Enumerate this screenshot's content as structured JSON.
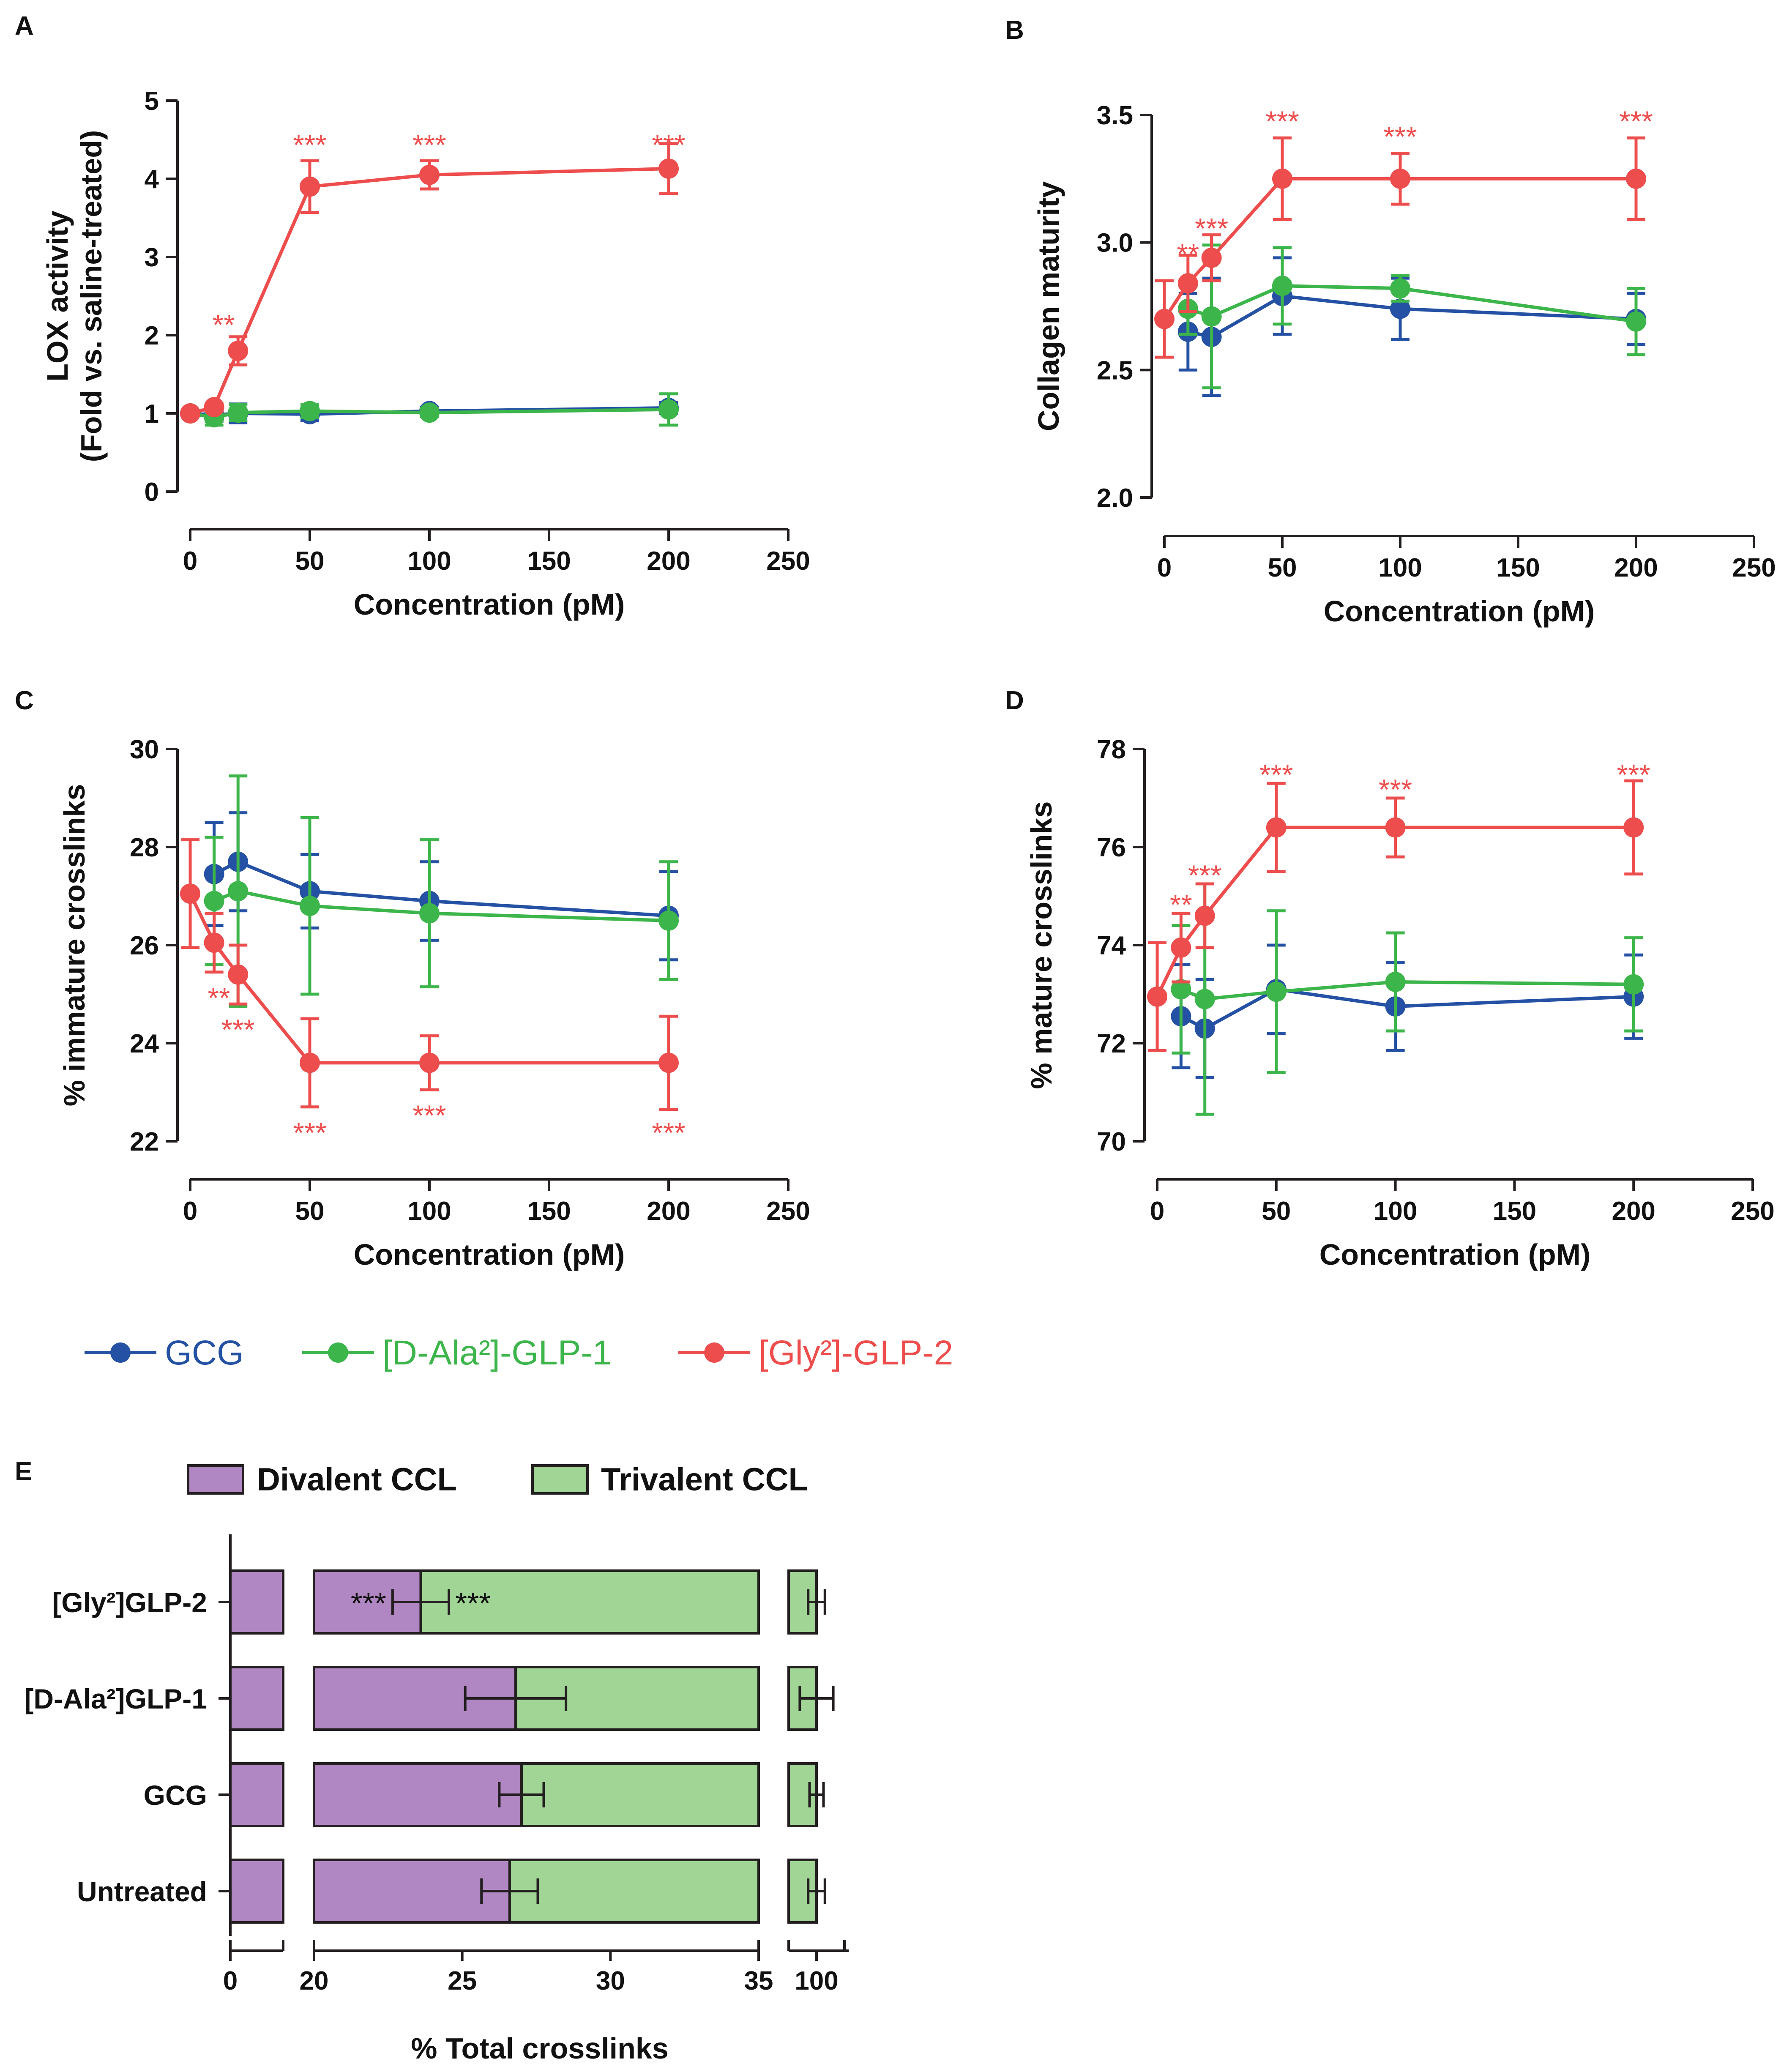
{
  "colors": {
    "GCG": "#2451a4",
    "DAla": "#3cb54a",
    "Gly": "#ee4d4d",
    "divalent": "#b187c3",
    "trivalent": "#a1d596",
    "axis": "#231f20"
  },
  "legend": {
    "series": [
      "GCG",
      "[D-Ala²]-GLP-1",
      "[Gly²]-GLP-2"
    ]
  },
  "chart_data": [
    {
      "panel": "A",
      "type": "line",
      "title": "",
      "xlabel": "Concentration (pM)",
      "ylabel": [
        "LOX activity",
        "(Fold vs. saline-treated)"
      ],
      "xlim": [
        0,
        250
      ],
      "ylim": [
        0,
        5
      ],
      "xticks": [
        "0",
        "50",
        "100",
        "150",
        "200",
        "250"
      ],
      "yticks": [
        "0",
        "1",
        "2",
        "3",
        "4",
        "5"
      ],
      "series": [
        {
          "name": "GCG",
          "color": "#2451a4",
          "x": [
            0,
            10,
            20,
            50,
            100,
            200
          ],
          "y": [
            1.0,
            0.98,
            1.0,
            0.99,
            1.03,
            1.07
          ],
          "err": [
            0.03,
            0.08,
            0.12,
            0.08,
            0.05,
            0.07
          ]
        },
        {
          "name": "[D-Ala²]-GLP-1",
          "color": "#3cb54a",
          "x": [
            0,
            10,
            20,
            50,
            100,
            200
          ],
          "y": [
            1.0,
            0.95,
            1.01,
            1.03,
            1.01,
            1.05
          ],
          "err": [
            0.03,
            0.1,
            0.1,
            0.08,
            0.05,
            0.2
          ]
        },
        {
          "name": "[Gly²]-GLP-2",
          "color": "#ee4d4d",
          "x": [
            0,
            10,
            20,
            50,
            100,
            200
          ],
          "y": [
            1.0,
            1.08,
            1.8,
            3.9,
            4.05,
            4.13
          ],
          "err": [
            0.03,
            0.05,
            0.18,
            0.33,
            0.18,
            0.32
          ]
        }
      ],
      "annotations": [
        {
          "text": "**",
          "x": 14,
          "y": 2.15
        },
        {
          "text": "***",
          "x": 50,
          "y": 4.45
        },
        {
          "text": "***",
          "x": 100,
          "y": 4.45
        },
        {
          "text": "***",
          "x": 200,
          "y": 4.45
        }
      ]
    },
    {
      "panel": "B",
      "type": "line",
      "title": "",
      "xlabel": "Concentration (pM)",
      "ylabel": [
        "Collagen maturity"
      ],
      "xlim": [
        0,
        250
      ],
      "ylim": [
        2.0,
        3.5
      ],
      "xticks": [
        "0",
        "50",
        "100",
        "150",
        "200",
        "250"
      ],
      "yticks": [
        "2.0",
        "2.5",
        "3.0",
        "3.5"
      ],
      "series": [
        {
          "name": "GCG",
          "color": "#2451a4",
          "x": [
            10,
            20,
            50,
            100,
            200
          ],
          "y": [
            2.65,
            2.63,
            2.79,
            2.74,
            2.7
          ],
          "err": [
            0.15,
            0.23,
            0.15,
            0.12,
            0.1
          ]
        },
        {
          "name": "[D-Ala²]-GLP-1",
          "color": "#3cb54a",
          "x": [
            10,
            20,
            50,
            100,
            200
          ],
          "y": [
            2.74,
            2.71,
            2.83,
            2.82,
            2.69
          ],
          "err": [
            0.1,
            0.28,
            0.15,
            0.05,
            0.13
          ]
        },
        {
          "name": "[Gly²]-GLP-2",
          "color": "#ee4d4d",
          "x": [
            0,
            10,
            20,
            50,
            100,
            200
          ],
          "y": [
            2.7,
            2.84,
            2.94,
            3.25,
            3.25,
            3.25
          ],
          "err": [
            0.15,
            0.11,
            0.09,
            0.16,
            0.1,
            0.16
          ]
        }
      ],
      "annotations": [
        {
          "text": "**",
          "x": 10,
          "y": 2.96
        },
        {
          "text": "***",
          "x": 20,
          "y": 3.06
        },
        {
          "text": "***",
          "x": 50,
          "y": 3.48
        },
        {
          "text": "***",
          "x": 100,
          "y": 3.42
        },
        {
          "text": "***",
          "x": 200,
          "y": 3.48
        }
      ]
    },
    {
      "panel": "C",
      "type": "line",
      "title": "",
      "xlabel": "Concentration (pM)",
      "ylabel": [
        "% immature crosslinks"
      ],
      "xlim": [
        0,
        250
      ],
      "ylim": [
        22,
        30
      ],
      "xticks": [
        "0",
        "50",
        "100",
        "150",
        "200",
        "250"
      ],
      "yticks": [
        "22",
        "24",
        "26",
        "28",
        "30"
      ],
      "series": [
        {
          "name": "GCG",
          "color": "#2451a4",
          "x": [
            10,
            20,
            50,
            100,
            200
          ],
          "y": [
            27.45,
            27.7,
            27.1,
            26.9,
            26.6
          ],
          "err": [
            1.05,
            1.0,
            0.75,
            0.8,
            0.9
          ]
        },
        {
          "name": "[D-Ala²]-GLP-1",
          "color": "#3cb54a",
          "x": [
            10,
            20,
            50,
            100,
            200
          ],
          "y": [
            26.9,
            27.1,
            26.8,
            26.65,
            26.5
          ],
          "err": [
            1.3,
            2.35,
            1.8,
            1.5,
            1.2
          ]
        },
        {
          "name": "[Gly²]-GLP-2",
          "color": "#ee4d4d",
          "x": [
            0,
            10,
            20,
            50,
            100,
            200
          ],
          "y": [
            27.05,
            26.05,
            25.4,
            23.6,
            23.6,
            23.6
          ],
          "err": [
            1.1,
            0.6,
            0.6,
            0.9,
            0.55,
            0.95
          ]
        }
      ],
      "annotations": [
        {
          "text": "**",
          "x": 12,
          "y": 24.95
        },
        {
          "text": "***",
          "x": 20,
          "y": 24.3
        },
        {
          "text": "***",
          "x": 50,
          "y": 22.2
        },
        {
          "text": "***",
          "x": 100,
          "y": 22.55
        },
        {
          "text": "***",
          "x": 200,
          "y": 22.2
        }
      ]
    },
    {
      "panel": "D",
      "type": "line",
      "title": "",
      "xlabel": "Concentration (pM)",
      "ylabel": [
        "% mature crosslinks"
      ],
      "xlim": [
        0,
        250
      ],
      "ylim": [
        70,
        78
      ],
      "xticks": [
        "0",
        "50",
        "100",
        "150",
        "200",
        "250"
      ],
      "yticks": [
        "70",
        "72",
        "74",
        "76",
        "78"
      ],
      "series": [
        {
          "name": "GCG",
          "color": "#2451a4",
          "x": [
            10,
            20,
            50,
            100,
            200
          ],
          "y": [
            72.55,
            72.3,
            73.1,
            72.75,
            72.95
          ],
          "err": [
            1.05,
            1.0,
            0.9,
            0.9,
            0.85
          ]
        },
        {
          "name": "[D-Ala²]-GLP-1",
          "color": "#3cb54a",
          "x": [
            10,
            20,
            50,
            100,
            200
          ],
          "y": [
            73.1,
            72.9,
            73.05,
            73.25,
            73.2
          ],
          "err": [
            1.3,
            2.35,
            1.65,
            1.0,
            0.95
          ]
        },
        {
          "name": "[Gly²]-GLP-2",
          "color": "#ee4d4d",
          "x": [
            0,
            10,
            20,
            50,
            100,
            200
          ],
          "y": [
            72.95,
            73.95,
            74.6,
            76.4,
            76.4,
            76.4
          ],
          "err": [
            1.1,
            0.7,
            0.65,
            0.9,
            0.6,
            0.95
          ]
        }
      ],
      "annotations": [
        {
          "text": "**",
          "x": 10,
          "y": 74.85
        },
        {
          "text": "***",
          "x": 20,
          "y": 75.45
        },
        {
          "text": "***",
          "x": 50,
          "y": 77.5
        },
        {
          "text": "***",
          "x": 100,
          "y": 77.2
        },
        {
          "text": "***",
          "x": 200,
          "y": 77.5
        }
      ]
    },
    {
      "panel": "E",
      "type": "bar",
      "orientation": "horizontal",
      "stacked": true,
      "title": "",
      "xlabel": "% Total crosslinks",
      "ylabel": "",
      "legend": [
        "Divalent CCL",
        "Trivalent CCL"
      ],
      "axis_segments": [
        {
          "range": [
            0,
            7.5
          ],
          "ticks": [
            "0"
          ]
        },
        {
          "range": [
            20,
            35
          ],
          "ticks": [
            "20",
            "25",
            "30",
            "35"
          ]
        },
        {
          "range": [
            99,
            101
          ],
          "ticks": [
            "100"
          ]
        }
      ],
      "categories": [
        "[Gly²]GLP-2",
        "[D-Ala²]GLP-1",
        "GCG",
        "Untreated"
      ],
      "series": [
        {
          "name": "Divalent CCL",
          "color": "#b187c3",
          "values": [
            23.6,
            26.8,
            27.0,
            26.6
          ],
          "err": [
            0.95,
            1.7,
            0.75,
            0.95
          ]
        },
        {
          "name": "Trivalent CCL",
          "color": "#a1d596",
          "values": [
            76.4,
            73.2,
            73.0,
            73.4
          ]
        }
      ],
      "total_err": [
        0.3,
        0.6,
        0.25,
        0.3
      ],
      "annotations": [
        {
          "category": "[Gly²]GLP-2",
          "text": "***",
          "side": "left"
        },
        {
          "category": "[Gly²]GLP-2",
          "text": "***",
          "side": "right"
        }
      ]
    }
  ]
}
